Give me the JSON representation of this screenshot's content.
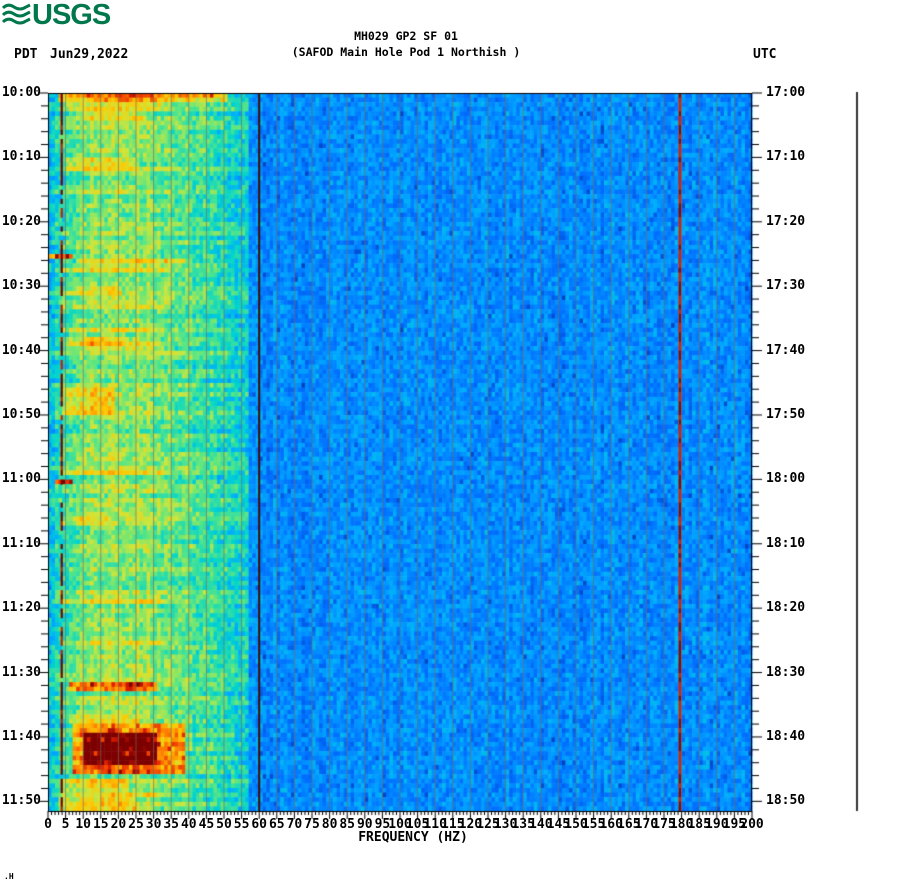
{
  "header": {
    "logo": "USGS",
    "tz_left": "PDT",
    "date": "Jun29,2022",
    "tz_right": "UTC"
  },
  "footer": {
    "watermark": ".H"
  },
  "colors": {
    "logo_green": "#00784B",
    "grid_line": "rgba(122,104,88,0.65)",
    "axis_black": "#000000"
  },
  "chart_data": {
    "type": "heatmap",
    "subtype": "spectrogram",
    "title": "MH029 GP2 SF 01",
    "subtitle": "(SAFOD Main Hole Pod 1 Northish )",
    "xlabel": "FREQUENCY (HZ)",
    "colormap": "jet",
    "legend": "none",
    "grid": "vertical gridlines every 5 Hz",
    "x_axis": {
      "min_hz": 0,
      "max_hz": 200,
      "major_tick_hz": 5,
      "minor_tick_hz": 1,
      "tick_labels": [
        0,
        5,
        10,
        15,
        20,
        25,
        30,
        35,
        40,
        45,
        50,
        55,
        60,
        65,
        70,
        75,
        80,
        85,
        90,
        95,
        100,
        105,
        110,
        115,
        120,
        125,
        130,
        135,
        140,
        145,
        150,
        155,
        160,
        165,
        170,
        175,
        180,
        185,
        190,
        195,
        200
      ]
    },
    "left_axis": {
      "timezone": "PDT",
      "tick_labels": [
        "10:00",
        "10:10",
        "10:20",
        "10:30",
        "10:40",
        "10:50",
        "11:00",
        "11:10",
        "11:20",
        "11:30",
        "11:40",
        "11:50"
      ],
      "label_interval_minutes": 10,
      "minor_tick_minutes": 2,
      "span_minutes": 111.5
    },
    "right_axis": {
      "timezone": "UTC",
      "tick_labels": [
        "17:00",
        "17:10",
        "17:20",
        "17:30",
        "17:40",
        "17:50",
        "18:00",
        "18:10",
        "18:20",
        "18:30",
        "18:40",
        "18:50"
      ]
    },
    "scale_bar_right": true,
    "colormap_stops": [
      [
        0.0,
        [
          0,
          0,
          131
        ]
      ],
      [
        0.125,
        [
          0,
          50,
          170
        ]
      ],
      [
        0.25,
        [
          0,
          110,
          255
        ]
      ],
      [
        0.375,
        [
          0,
          170,
          255
        ]
      ],
      [
        0.45,
        [
          0,
          212,
          205
        ]
      ],
      [
        0.55,
        [
          90,
          230,
          130
        ]
      ],
      [
        0.65,
        [
          205,
          230,
          60
        ]
      ],
      [
        0.75,
        [
          255,
          200,
          0
        ]
      ],
      [
        0.85,
        [
          255,
          120,
          0
        ]
      ],
      [
        0.93,
        [
          225,
          30,
          0
        ]
      ],
      [
        1.0,
        [
          125,
          0,
          0
        ]
      ]
    ],
    "base_profile": [
      [
        0,
        0.4
      ],
      [
        1,
        0.44
      ],
      [
        2,
        0.48
      ],
      [
        5,
        0.52
      ],
      [
        8,
        0.56
      ],
      [
        12,
        0.585
      ],
      [
        22,
        0.6
      ],
      [
        30,
        0.57
      ],
      [
        38,
        0.54
      ],
      [
        46,
        0.5
      ],
      [
        52,
        0.47
      ],
      [
        56,
        0.44
      ]
    ],
    "quiet_zone": {
      "from_hz": 57,
      "to_hz": 200,
      "level": 0.235,
      "jitter": 0.155
    },
    "bands": [
      {
        "t0": 0.0,
        "t1": 1.5,
        "f0": 3,
        "f1": 50,
        "boost": 0.22
      },
      {
        "t0": 0.0,
        "t1": 0.8,
        "f0": 3,
        "f1": 48,
        "boost": 0.1
      },
      {
        "t0": 3.0,
        "t1": 4.6,
        "f0": 8,
        "f1": 26,
        "boost": 0.08
      },
      {
        "t0": 10.3,
        "t1": 11.8,
        "f0": 5,
        "f1": 24,
        "boost": 0.12
      },
      {
        "t0": 24.7,
        "t1": 25.6,
        "f0": 0,
        "f1": 6,
        "boost": 0.42
      },
      {
        "t0": 25.4,
        "t1": 26.4,
        "f0": 8,
        "f1": 38,
        "boost": 0.16
      },
      {
        "t0": 30.0,
        "t1": 31.2,
        "f0": 4,
        "f1": 20,
        "boost": 0.08
      },
      {
        "t0": 37.8,
        "t1": 39.2,
        "f0": 6,
        "f1": 20,
        "boost": 0.1
      },
      {
        "t0": 46.0,
        "t1": 50.0,
        "f0": 4,
        "f1": 18,
        "boost": 0.13
      },
      {
        "t0": 59.8,
        "t1": 60.9,
        "f0": 2,
        "f1": 6,
        "boost": 0.45
      },
      {
        "t0": 65.5,
        "t1": 67.0,
        "f0": 4,
        "f1": 16,
        "boost": 0.08
      },
      {
        "t0": 91.5,
        "t1": 93.2,
        "f0": 6,
        "f1": 30,
        "boost": 0.26
      },
      {
        "t0": 96.5,
        "t1": 98.0,
        "f0": 6,
        "f1": 25,
        "boost": 0.1
      },
      {
        "t0": 98.0,
        "t1": 105.5,
        "f0": 7,
        "f1": 38,
        "boost": 0.26
      },
      {
        "t0": 99.5,
        "t1": 104.5,
        "f0": 10,
        "f1": 30,
        "boost": 0.22
      },
      {
        "t0": 106.8,
        "t1": 108.5,
        "f0": 4,
        "f1": 22,
        "boost": 0.12
      },
      {
        "t0": 109.5,
        "t1": 111.5,
        "f0": 3,
        "f1": 24,
        "boost": 0.15
      }
    ],
    "vertical_lines": [
      {
        "freq_hz": 3.9,
        "style": "dashed",
        "width": 2.2,
        "colors": [
          "#7a0400",
          "#c42200"
        ],
        "note": "persistent narrowband tremor line"
      },
      {
        "freq_hz": 60,
        "style": "solid",
        "width": 2.0,
        "colors": [
          "#3f0c02"
        ],
        "note": "60 Hz power line"
      },
      {
        "freq_hz": 179.5,
        "style": "segmented",
        "width": 2.4,
        "colors": [
          "#d82000",
          "#8c0600"
        ],
        "note": "180 Hz harmonic"
      }
    ]
  }
}
